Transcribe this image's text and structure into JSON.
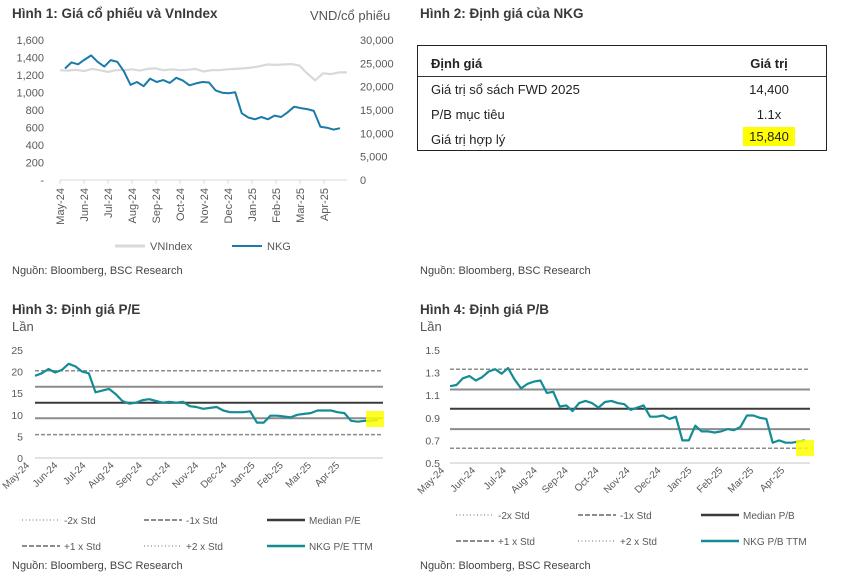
{
  "figure1": {
    "title": "Hình 1: Giá cổ phiếu và VnIndex",
    "unit_label": "VND/cổ phiếu",
    "source": "Nguồn: Bloomberg, BSC Research"
  },
  "figure2": {
    "title": "Hình 2: Định giá của NKG",
    "headers": [
      "Định giá",
      "Giá trị"
    ],
    "rows": [
      {
        "label": "Giá trị sổ sách FWD 2025",
        "value": "14,400"
      },
      {
        "label": "P/B mục tiêu",
        "value": "1.1x"
      },
      {
        "label": "Giá trị hợp lý",
        "value": "15,840",
        "highlight": true
      }
    ],
    "highlight_color": "#ffff00"
  },
  "figure3": {
    "title": "Hình 3: Định giá P/E",
    "unit_label": "Lần",
    "source": "Nguồn: Bloomberg, BSC Research"
  },
  "figure4": {
    "title": "Hình 4: Định giá P/B",
    "unit_label": "Lần",
    "source": "Nguồn: Bloomberg, BSC Research"
  },
  "chart_data": [
    {
      "id": "price",
      "type": "line",
      "title": "Hình 1: Giá cổ phiếu và VnIndex",
      "x": [
        "May-24",
        "Jun-24",
        "Jul-24",
        "Aug-24",
        "Sep-24",
        "Oct-24",
        "Nov-24",
        "Dec-24",
        "Jan-25",
        "Feb-25",
        "Mar-25",
        "Apr-25"
      ],
      "y_left": {
        "ticks": [
          "-",
          "200",
          "400",
          "600",
          "800",
          "1,000",
          "1,200",
          "1,400",
          "1,600"
        ],
        "range": [
          0,
          1600
        ]
      },
      "y_right": {
        "ticks": [
          "0",
          "5,000",
          "10,000",
          "15,000",
          "20,000",
          "25,000",
          "30,000"
        ],
        "range": [
          0,
          30000
        ],
        "label": "VND/cổ phiếu"
      },
      "series": [
        {
          "name": "VNIndex",
          "axis": "left",
          "color": "#d9d9d9",
          "values": [
            1255,
            1250,
            1260,
            1245,
            1270,
            1255,
            1235,
            1255,
            1255,
            1265,
            1250,
            1270,
            1275,
            1255,
            1265,
            1255,
            1260,
            1270,
            1240,
            1255,
            1255,
            1265,
            1270,
            1275,
            1285,
            1300,
            1320,
            1315,
            1320,
            1325,
            1310,
            1220,
            1140,
            1220,
            1210,
            1230,
            1230
          ]
        },
        {
          "name": "NKG",
          "axis": "right",
          "color": "#1a7bab",
          "values": [
            23900,
            25200,
            24800,
            25800,
            26700,
            25300,
            24300,
            25700,
            25300,
            23300,
            20400,
            21000,
            20100,
            21700,
            21000,
            21400,
            20800,
            21900,
            21300,
            20300,
            20700,
            21000,
            20900,
            19200,
            18700,
            18600,
            18800,
            14300,
            13400,
            13000,
            13500,
            13000,
            13800,
            13500,
            14500,
            15700,
            15400,
            15200,
            14800,
            11400,
            11200,
            10800,
            11100
          ]
        }
      ],
      "legend": [
        "VNIndex",
        "NKG"
      ],
      "legend_position": "bottom"
    },
    {
      "id": "pe",
      "type": "line",
      "title": "Hình 3: Định giá P/E",
      "ylabel": "Lần",
      "x": [
        "May-24",
        "Jun-24",
        "Jul-24",
        "Aug-24",
        "Sep-24",
        "Oct-24",
        "Nov-24",
        "Dec-24",
        "Jan-25",
        "Feb-25",
        "Mar-25",
        "Apr-25"
      ],
      "y_ticks": [
        0,
        5,
        10,
        15,
        20,
        25
      ],
      "ylim": [
        0,
        25
      ],
      "bands": {
        "minus2": 5.4,
        "minus1": 9.2,
        "median": 12.8,
        "plus1": 16.5,
        "plus2": 20.2
      },
      "series": [
        {
          "name": "NKG P/E TTM",
          "color": "#138c95",
          "values": [
            19.0,
            19.6,
            20.6,
            19.8,
            20.4,
            21.8,
            21.2,
            20.0,
            19.6,
            15.2,
            15.6,
            16.0,
            14.8,
            13.2,
            12.6,
            12.8,
            13.4,
            13.6,
            13.2,
            12.8,
            13.0,
            12.8,
            13.0,
            12.0,
            11.8,
            11.4,
            11.6,
            11.8,
            11.0,
            10.6,
            10.6,
            10.6,
            10.8,
            8.2,
            8.2,
            9.8,
            9.8,
            9.6,
            9.4,
            10.0,
            10.2,
            10.4,
            11.0,
            11.0,
            11.0,
            10.6,
            10.4,
            8.6,
            8.4,
            8.6,
            8.6,
            8.8
          ]
        }
      ],
      "legend": [
        "-2x Std",
        "-1x Std",
        "Median P/E",
        "+1 x Std",
        "+2 x Std",
        "NKG P/E TTM"
      ],
      "legend_position": "bottom"
    },
    {
      "id": "pb",
      "type": "line",
      "title": "Hình 4: Định giá P/B",
      "ylabel": "Lần",
      "x": [
        "May-24",
        "Jun-24",
        "Jul-24",
        "Aug-24",
        "Sep-24",
        "Oct-24",
        "Nov-24",
        "Dec-24",
        "Jan-25",
        "Feb-25",
        "Mar-25",
        "Apr-25"
      ],
      "y_ticks": [
        0.5,
        0.7,
        0.9,
        1.1,
        1.3,
        1.5
      ],
      "ylim": [
        0.5,
        1.5
      ],
      "bands": {
        "minus2": 0.63,
        "minus1": 0.8,
        "median": 0.98,
        "plus1": 1.15,
        "plus2": 1.33
      },
      "series": [
        {
          "name": "NKG P/B TTM",
          "color": "#138c95",
          "values": [
            1.18,
            1.19,
            1.25,
            1.27,
            1.23,
            1.26,
            1.31,
            1.33,
            1.29,
            1.34,
            1.24,
            1.16,
            1.2,
            1.22,
            1.23,
            1.12,
            1.13,
            1.0,
            1.01,
            0.96,
            1.03,
            1.05,
            1.03,
            0.99,
            1.04,
            1.05,
            1.03,
            1.02,
            0.97,
            0.99,
            1.01,
            0.91,
            0.91,
            0.92,
            0.89,
            0.91,
            0.7,
            0.7,
            0.83,
            0.78,
            0.78,
            0.77,
            0.78,
            0.8,
            0.79,
            0.82,
            0.92,
            0.92,
            0.9,
            0.89,
            0.68,
            0.7,
            0.68,
            0.68,
            0.69,
            0.7
          ]
        }
      ],
      "legend": [
        "-2x Std",
        "-1x Std",
        "Median P/B",
        "+1 x Std",
        "+2 x Std",
        "NKG P/B TTM"
      ],
      "legend_position": "bottom",
      "highlight_color": "#ffff00"
    }
  ]
}
